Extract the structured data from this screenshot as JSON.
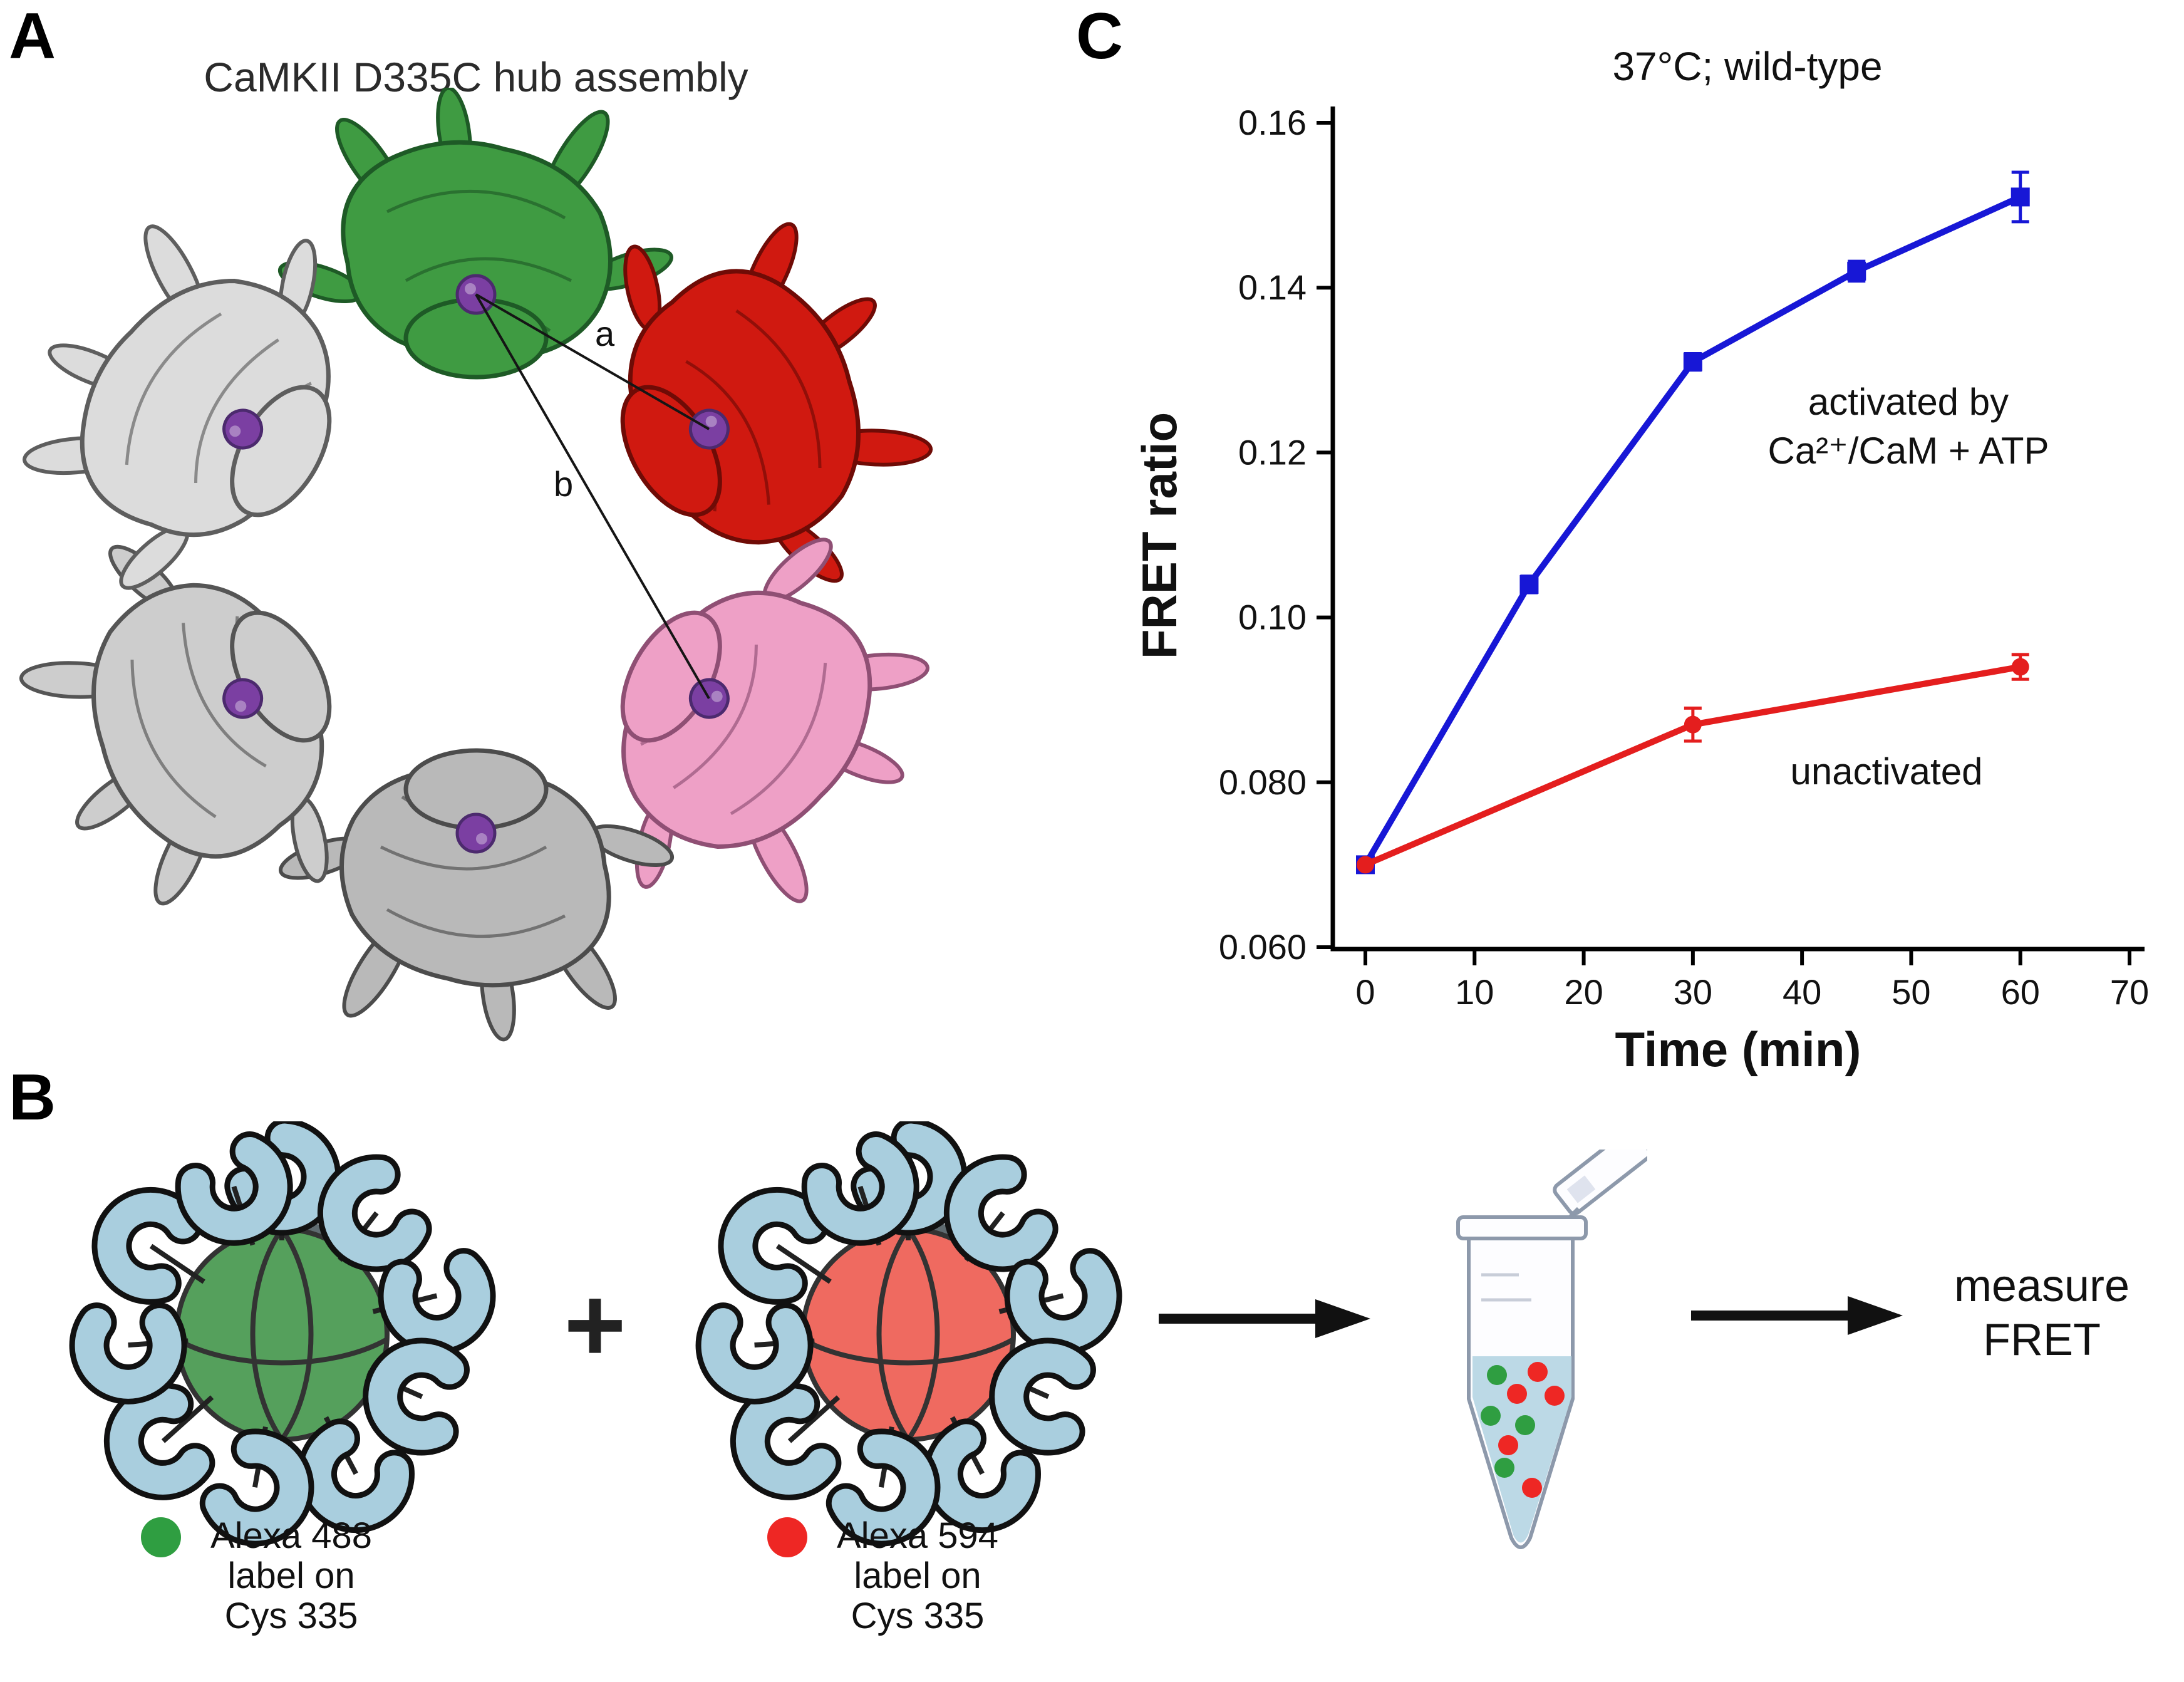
{
  "panels": {
    "a": "A",
    "b": "B",
    "c": "C"
  },
  "panel_a": {
    "title": "CaMKII D335C hub assembly",
    "distance_labels": {
      "a": "a",
      "b": "b"
    },
    "sphere_color": "#7b3fa2",
    "subunit_colors": [
      {
        "fill": "#3f9b42",
        "edge": "#1e5a26"
      },
      {
        "fill": "#d01910",
        "edge": "#6f0b06"
      },
      {
        "fill": "#eea0c6",
        "edge": "#8f4f74"
      },
      {
        "fill": "#b9b9b9",
        "edge": "#4c4c4c"
      },
      {
        "fill": "#cdcdcd",
        "edge": "#555555"
      },
      {
        "fill": "#dcdcdc",
        "edge": "#5e5e5e"
      }
    ]
  },
  "panel_b": {
    "plus_sign": "+",
    "kinase_color": "#a9cede",
    "hub_left": {
      "ball_color": "#55a05c"
    },
    "hub_right": {
      "ball_color": "#ef6a60"
    },
    "tube_liquid_color": "#bcd9e6",
    "legend_left": {
      "dot_color": "#2f9e41",
      "lines": [
        "Alexa 488",
        "label on",
        "Cys 335"
      ]
    },
    "legend_right": {
      "dot_color": "#ee2724",
      "lines": [
        "Alexa 594",
        "label on",
        "Cys 335"
      ]
    },
    "measure_lines": [
      "measure",
      "FRET"
    ]
  },
  "chart_data": {
    "type": "line",
    "title": "37°C; wild-type",
    "xlabel": "Time (min)",
    "ylabel": "FRET ratio",
    "xlim": [
      0,
      70
    ],
    "ylim": [
      0.06,
      0.16
    ],
    "xticks": [
      0,
      10,
      20,
      30,
      40,
      50,
      60,
      70
    ],
    "yticks": [
      0.06,
      0.08,
      0.1,
      0.12,
      0.14,
      0.16
    ],
    "ytick_labels": [
      "0.060",
      "0.080",
      "0.10",
      "0.12",
      "0.14",
      "0.16"
    ],
    "grid": false,
    "legend_position": "none",
    "series": [
      {
        "name": "activated by Ca²⁺/CaM + ATP",
        "color": "#1717d6",
        "marker": "square",
        "x": [
          0,
          15,
          30,
          45,
          60
        ],
        "y": [
          0.07,
          0.104,
          0.131,
          0.142,
          0.151
        ],
        "yerr": [
          0.0,
          0.001,
          0.001,
          0.0012,
          0.003
        ]
      },
      {
        "name": "unactivated",
        "color": "#e41e1e",
        "marker": "circle",
        "x": [
          0,
          30,
          60
        ],
        "y": [
          0.07,
          0.087,
          0.094
        ],
        "yerr": [
          0.0,
          0.002,
          0.0015
        ]
      }
    ],
    "annotations": [
      {
        "lines": [
          "activated by",
          "Ca²⁺/CaM + ATP"
        ]
      },
      {
        "lines": [
          "unactivated"
        ]
      }
    ]
  }
}
